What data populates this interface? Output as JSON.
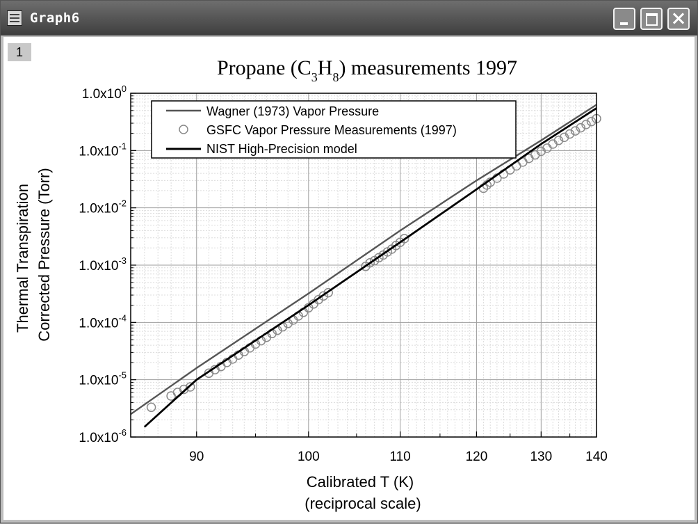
{
  "window": {
    "title": "Graph6",
    "layer_label": "1",
    "icons": {
      "app": "graph-window-icon",
      "minimize": "minimize-icon",
      "maximize": "maximize-icon",
      "close": "close-icon"
    }
  },
  "chart_data": {
    "type": "line",
    "title_prefix": "Propane (C",
    "title_sub1": "3",
    "title_mid": "H",
    "title_sub2": "8",
    "title_suffix": ") measurements 1997",
    "xlabel_line1": "Calibrated T (K)",
    "xlabel_line2": "(reciprocal scale)",
    "ylabel_line1": "Thermal Transpiration",
    "ylabel_line2": "Corrected Pressure (Torr)",
    "x_scale": "reciprocal",
    "y_scale": "log",
    "xlim": [
      85,
      140
    ],
    "ylim": [
      1e-06,
      1
    ],
    "grid": true,
    "legend_position": "top-left",
    "x_ticks": [
      {
        "value": 90,
        "label": "90"
      },
      {
        "value": 100,
        "label": "100"
      },
      {
        "value": 110,
        "label": "110"
      },
      {
        "value": 120,
        "label": "120"
      },
      {
        "value": 130,
        "label": "130"
      },
      {
        "value": 140,
        "label": "140"
      }
    ],
    "y_ticks": [
      {
        "exp": 0,
        "base": "1.0x10",
        "sup": "0"
      },
      {
        "exp": -1,
        "base": "1.0x10",
        "sup": "-1"
      },
      {
        "exp": -2,
        "base": "1.0x10",
        "sup": "-2"
      },
      {
        "exp": -3,
        "base": "1.0x10",
        "sup": "-3"
      },
      {
        "exp": -4,
        "base": "1.0x10",
        "sup": "-4"
      },
      {
        "exp": -5,
        "base": "1.0x10",
        "sup": "-5"
      },
      {
        "exp": -6,
        "base": "1.0x10",
        "sup": "-6"
      }
    ],
    "series": [
      {
        "name": "Wagner (1973) Vapor Pressure",
        "kind": "line",
        "color": "#555555",
        "x": [
          85,
          90,
          100,
          110,
          120,
          130,
          140
        ],
        "y": [
          2.5e-06,
          1.6e-05,
          0.00032,
          0.004,
          0.03,
          0.15,
          0.63
        ]
      },
      {
        "name": "GSFC Vapor Pressure Measurements (1997)",
        "kind": "scatter",
        "color": "#8a8a8a",
        "x": [
          86.5,
          88,
          88.5,
          89,
          89.5,
          91,
          91.5,
          92,
          92.5,
          93,
          93.5,
          94,
          94.5,
          95,
          95.5,
          96,
          96.5,
          97,
          97.5,
          98,
          98.5,
          99,
          99.5,
          100,
          100.5,
          101,
          101.5,
          102,
          106,
          106.5,
          107,
          107.5,
          108,
          108.5,
          109,
          109.5,
          110,
          110.5,
          121,
          121.5,
          122,
          123,
          124,
          125,
          126,
          127,
          128,
          129,
          130,
          131,
          132,
          133,
          134,
          135,
          136,
          137,
          138,
          139,
          140
        ],
        "y": [
          3.3e-06,
          5.2e-06,
          6e-06,
          6.8e-06,
          7.5e-06,
          1.3e-05,
          1.5e-05,
          1.7e-05,
          2e-05,
          2.3e-05,
          2.7e-05,
          3.1e-05,
          3.6e-05,
          4.2e-05,
          4.8e-05,
          5.5e-05,
          6.4e-05,
          7.3e-05,
          8.4e-05,
          9.6e-05,
          0.00011,
          0.00013,
          0.00015,
          0.00018,
          0.00021,
          0.00025,
          0.00029,
          0.00033,
          0.00095,
          0.0011,
          0.0012,
          0.00135,
          0.0015,
          0.0017,
          0.0019,
          0.0022,
          0.0025,
          0.0029,
          0.022,
          0.025,
          0.028,
          0.033,
          0.039,
          0.046,
          0.054,
          0.063,
          0.073,
          0.084,
          0.097,
          0.11,
          0.13,
          0.15,
          0.17,
          0.195,
          0.22,
          0.25,
          0.285,
          0.32,
          0.36
        ]
      },
      {
        "name": "NIST High-Precision model",
        "kind": "line",
        "color": "#000000",
        "x": [
          86,
          90,
          100,
          110,
          120,
          130,
          140
        ],
        "y": [
          1.5e-06,
          1e-05,
          0.0002,
          0.0025,
          0.021,
          0.13,
          0.55
        ]
      }
    ]
  }
}
